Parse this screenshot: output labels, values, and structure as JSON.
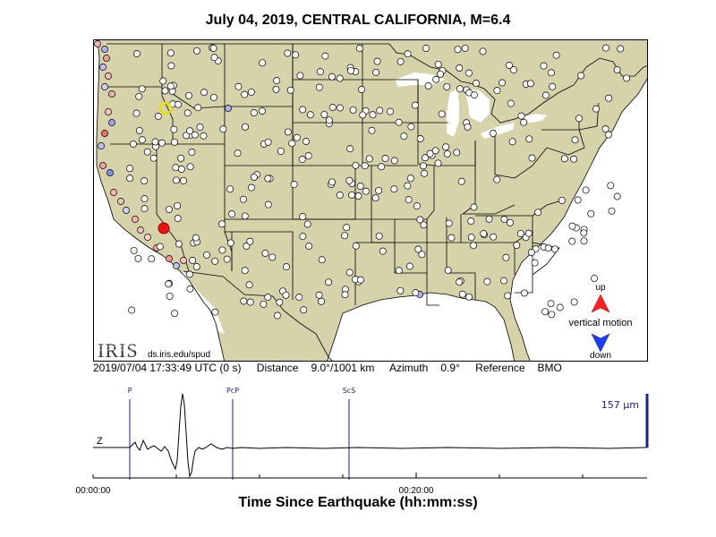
{
  "title": "July 04, 2019, CENTRAL CALIFORNIA, M=6.4",
  "legend": {
    "up_label": "up",
    "caption": "vertical motion",
    "down_label": "down",
    "up_color": "#ff2020",
    "down_color": "#1a3cff"
  },
  "logo": {
    "text": "IRIS",
    "url": "ds.iris.edu/spud"
  },
  "info": {
    "time": "2019/07/04 17:33:49 UTC (0 s)",
    "distance_label": "Distance",
    "distance": "9.0°/1001 km",
    "azimuth_label": "Azimuth",
    "azimuth": "0.9°",
    "reference_label": "Reference",
    "reference": "BMO"
  },
  "seismogram": {
    "channel": "Z",
    "amplitude": "157 µm",
    "phases": [
      "P",
      "PcP",
      "ScS"
    ],
    "time_ticks": [
      "00:00:00",
      "00:20:00"
    ]
  },
  "footer_title": "Time Since Earthquake (hh:mm:ss)",
  "colors": {
    "land": "#d6d3ab",
    "water": "#ffffff",
    "station_fill": "#ffffff",
    "epicenter": "#ee1111",
    "reference_marker": "#e8e000",
    "phase_line": "#1a1aa0"
  }
}
